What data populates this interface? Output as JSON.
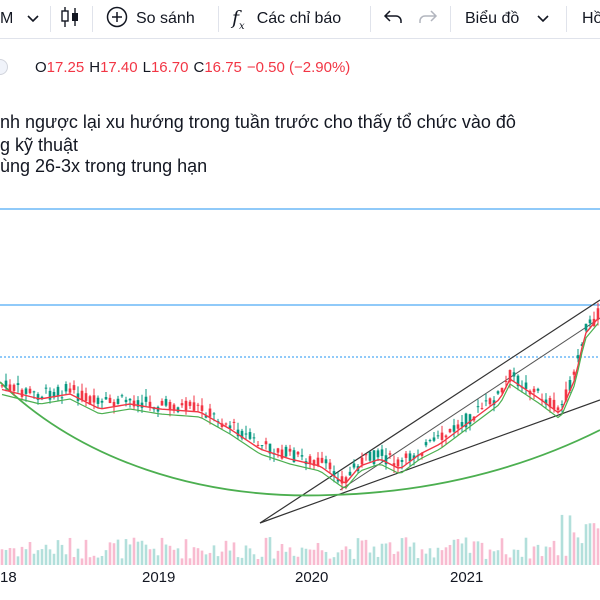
{
  "toolbar": {
    "interval_label": "M",
    "compare_label": "So sánh",
    "indicators_label": "Các chỉ báo",
    "chart_type_label": "Biểu đồ",
    "partial_label": "Hồ"
  },
  "ohlc": {
    "o_label": "O",
    "o_value": "17.25",
    "h_label": "H",
    "h_value": "17.40",
    "l_label": "L",
    "l_value": "16.70",
    "c_label": "C",
    "c_value": "16.75",
    "change": "−0.50 (−2.90%)"
  },
  "annotations": {
    "line1": "nh ngược lại xu hướng trong tuần trước cho thấy tổ chức vào đô",
    "line2": "g kỹ thuật",
    "line3": "ùng 26-3x trong trung hạn"
  },
  "colors": {
    "down": "#f23645",
    "up": "#089981",
    "ma_red": "#f23645",
    "ma_green": "#4caf50",
    "hline": "#2196f3",
    "trend": "#333333"
  },
  "chart_data": {
    "type": "line",
    "x": [
      "18",
      "2019",
      "2020",
      "2021"
    ],
    "series": []
  },
  "xaxis": {
    "labels": [
      "18",
      "2019",
      "2020",
      "2021"
    ]
  }
}
